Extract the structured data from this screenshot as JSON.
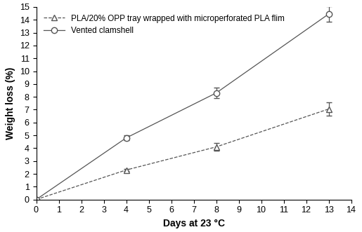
{
  "chart_data": {
    "type": "line",
    "x_label": "Days at 23 °C",
    "y_label": "Weight loss (%)",
    "x": [
      0,
      4,
      8,
      13
    ],
    "series": [
      {
        "name": "PLA/20% OPP tray wrapped with microperforated PLA flim",
        "color": "#555555",
        "marker": "triangle",
        "line_style": "dashed",
        "values": [
          0,
          2.3,
          4.1,
          7.05
        ],
        "errors": [
          0.05,
          0.1,
          0.3,
          0.5
        ]
      },
      {
        "name": "Vented clamshell",
        "color": "#555555",
        "marker": "circle",
        "line_style": "solid",
        "values": [
          0,
          4.8,
          8.3,
          14.45
        ],
        "errors": [
          0.05,
          0.2,
          0.4,
          0.6
        ]
      }
    ],
    "xlim": [
      0,
      14
    ],
    "xticks": [
      0,
      1,
      2,
      3,
      4,
      5,
      6,
      7,
      8,
      9,
      10,
      11,
      12,
      13,
      14
    ],
    "ylim": [
      0,
      15
    ],
    "yticks": [
      0,
      1,
      2,
      3,
      4,
      5,
      6,
      7,
      8,
      9,
      10,
      11,
      12,
      13,
      14,
      15
    ],
    "grid": false,
    "legend": "upper left"
  }
}
